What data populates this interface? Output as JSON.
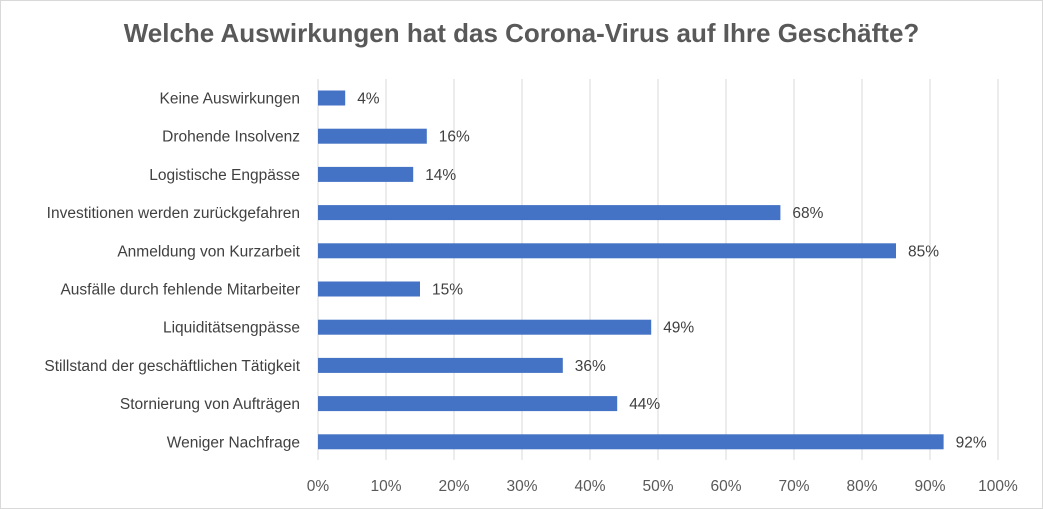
{
  "chart_data": {
    "type": "bar",
    "orientation": "horizontal",
    "title": "Welche Auswirkungen hat das Corona-Virus auf Ihre Geschäfte?",
    "categories": [
      "Keine Auswirkungen",
      "Drohende Insolvenz",
      "Logistische Engpässe",
      "Investitionen werden zurückgefahren",
      "Anmeldung von Kurzarbeit",
      "Ausfälle durch fehlende Mitarbeiter",
      "Liquiditätsengpässe",
      "Stillstand der geschäftlichen Tätigkeit",
      "Stornierung von Aufträgen",
      "Weniger Nachfrage"
    ],
    "values": [
      4,
      16,
      14,
      68,
      85,
      15,
      49,
      36,
      44,
      92
    ],
    "data_labels": [
      "4%",
      "16%",
      "14%",
      "68%",
      "85%",
      "15%",
      "49%",
      "36%",
      "44%",
      "92%"
    ],
    "xlim": [
      0,
      100
    ],
    "x_ticks": [
      "0%",
      "10%",
      "20%",
      "30%",
      "40%",
      "50%",
      "60%",
      "70%",
      "80%",
      "90%",
      "100%"
    ],
    "grid": true,
    "bar_color": "#4472c4",
    "grid_color": "#d9d9d9"
  }
}
